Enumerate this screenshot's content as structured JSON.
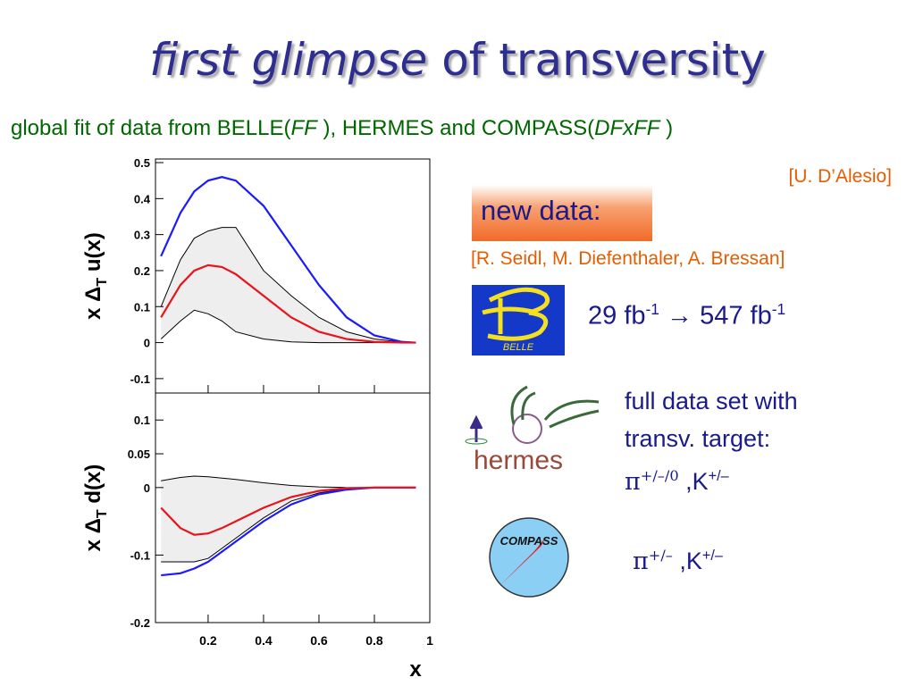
{
  "slide": {
    "title_italic": "first glimpse",
    "title_rest": "of transversity",
    "subtitle": [
      "global fit of data from BELLE(",
      "FF",
      " ), HERMES and COMPASS(",
      "DFxFF",
      " )"
    ],
    "credit": "[U. D’Alesio]",
    "new_data": "new data:",
    "authors": "[R. Seidl, M. Diefenthaler, A. Bressan]",
    "belle": {
      "logo": "BELLE",
      "lumi_from": "29 fb",
      "exp1": "-1",
      "lumi_to": "→ 547 fb",
      "exp2": "-1"
    },
    "hermes": {
      "logo": "hermes",
      "line1": "full data set with",
      "line2": "transv. target:",
      "pi": "π",
      "pi_charge": "+/–/0",
      "k": ",K",
      "k_charge": "+/–"
    },
    "compass": {
      "logo": "COMPASS",
      "pi": "π",
      "pi_charge": "+/–",
      "k": ",K",
      "k_charge": "+/–"
    }
  },
  "chart_data": [
    {
      "type": "line",
      "ylabel": {
        "prefix": "x Δ",
        "sub": "T",
        "suffix": " u(x)"
      },
      "x": [
        0.03,
        0.1,
        0.15,
        0.2,
        0.25,
        0.3,
        0.4,
        0.5,
        0.6,
        0.7,
        0.8,
        0.9,
        0.95
      ],
      "xlim": [
        0.01,
        1
      ],
      "xticks": [
        0.2,
        0.4,
        0.6,
        0.8,
        1
      ],
      "xtick_labels": false,
      "ylim": [
        -0.14,
        0.51
      ],
      "yticks": [
        -0.1,
        0,
        0.1,
        0.2,
        0.3,
        0.4,
        0.5
      ],
      "band": {
        "color": "#000000",
        "fill": "#eeeeee",
        "upper": [
          0.1,
          0.23,
          0.29,
          0.31,
          0.32,
          0.32,
          0.2,
          0.13,
          0.07,
          0.03,
          0.01,
          0.001,
          0
        ],
        "lower": [
          0.01,
          0.06,
          0.09,
          0.08,
          0.06,
          0.03,
          0.01,
          0.002,
          0,
          0,
          0,
          0,
          0
        ]
      },
      "series": [
        {
          "color": "#1a1aff",
          "values": [
            0.24,
            0.36,
            0.42,
            0.45,
            0.46,
            0.45,
            0.38,
            0.27,
            0.16,
            0.07,
            0.02,
            0.002,
            0
          ]
        },
        {
          "color": "#e8141c",
          "values": [
            0.07,
            0.16,
            0.2,
            0.215,
            0.21,
            0.19,
            0.13,
            0.07,
            0.03,
            0.01,
            0.002,
            0,
            0
          ]
        }
      ]
    },
    {
      "type": "line",
      "ylabel": {
        "prefix": "x Δ",
        "sub": "T",
        "suffix": " d(x)"
      },
      "xlabel": "x",
      "x": [
        0.03,
        0.1,
        0.15,
        0.2,
        0.25,
        0.3,
        0.4,
        0.5,
        0.6,
        0.7,
        0.8,
        0.9,
        0.95
      ],
      "xlim": [
        0.01,
        1
      ],
      "xticks": [
        0.2,
        0.4,
        0.6,
        0.8,
        1
      ],
      "xtick_labels": true,
      "ylim": [
        -0.2,
        0.14
      ],
      "yticks": [
        -0.2,
        -0.1,
        0,
        0.05,
        0.1
      ],
      "band": {
        "color": "#000000",
        "fill": "#eeeeee",
        "upper": [
          0.01,
          0.015,
          0.017,
          0.016,
          0.014,
          0.012,
          0.007,
          0.003,
          0.001,
          0,
          0,
          0,
          0
        ],
        "lower": [
          -0.11,
          -0.11,
          -0.11,
          -0.105,
          -0.09,
          -0.075,
          -0.045,
          -0.02,
          -0.008,
          -0.002,
          0,
          0,
          0
        ]
      },
      "series": [
        {
          "color": "#1a1aff",
          "values": [
            -0.13,
            -0.127,
            -0.12,
            -0.11,
            -0.095,
            -0.08,
            -0.05,
            -0.025,
            -0.01,
            -0.003,
            0,
            0,
            0
          ]
        },
        {
          "color": "#e8141c",
          "values": [
            -0.03,
            -0.06,
            -0.07,
            -0.068,
            -0.06,
            -0.05,
            -0.03,
            -0.014,
            -0.005,
            -0.001,
            0,
            0,
            0
          ]
        }
      ]
    }
  ]
}
